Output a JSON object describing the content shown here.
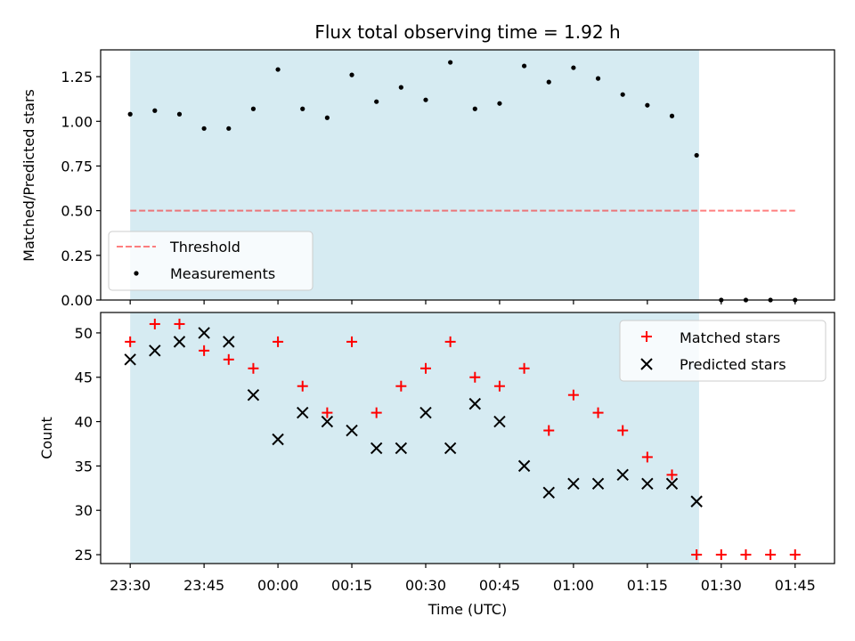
{
  "chart_data": [
    {
      "type": "scatter",
      "title": "Flux total observing time = 1.92 h",
      "ylabel": "Matched/Predicted stars",
      "ylim": [
        0,
        1.4
      ],
      "yticks": [
        0.0,
        0.25,
        0.5,
        0.75,
        1.0,
        1.25
      ],
      "ytick_labels": [
        "0.00",
        "0.25",
        "0.50",
        "0.75",
        "1.00",
        "1.25"
      ],
      "shaded_span": {
        "start": 0.0,
        "end": 115.5,
        "color": "#add8e6"
      },
      "threshold": {
        "name": "Threshold",
        "value": 0.5,
        "x_start": 0.0,
        "x_end": 135.0,
        "color": "#ff0000"
      },
      "measurements": {
        "name": "Measurements",
        "color": "#000000",
        "x": [
          0,
          5,
          10,
          15,
          20,
          25,
          30,
          35,
          40,
          45,
          50,
          55,
          60,
          65,
          70,
          75,
          80,
          85,
          90,
          95,
          100,
          105,
          110,
          115,
          120,
          125,
          130,
          135
        ],
        "y": [
          1.04,
          1.06,
          1.04,
          0.96,
          0.96,
          1.07,
          1.29,
          1.07,
          1.02,
          1.26,
          1.11,
          1.19,
          1.12,
          1.33,
          1.07,
          1.1,
          1.31,
          1.22,
          1.3,
          1.24,
          1.15,
          1.09,
          1.03,
          0.81,
          0.0,
          0.0,
          0.0,
          0.0
        ]
      },
      "legend_position": "lower-left",
      "grid": false
    },
    {
      "type": "scatter",
      "xlabel": "Time (UTC)",
      "ylabel": "Count",
      "ylim": [
        24,
        52.3
      ],
      "yticks": [
        25,
        30,
        35,
        40,
        45,
        50
      ],
      "ytick_labels": [
        "25",
        "30",
        "35",
        "40",
        "45",
        "50"
      ],
      "xlim": [
        -6,
        143
      ],
      "xticks": [
        0,
        15,
        30,
        45,
        60,
        75,
        90,
        105,
        120,
        135
      ],
      "xtick_labels": [
        "23:30",
        "23:45",
        "00:00",
        "00:15",
        "00:30",
        "00:45",
        "01:00",
        "01:15",
        "01:30",
        "01:45"
      ],
      "shaded_span": {
        "start": 0.0,
        "end": 115.5,
        "color": "#add8e6"
      },
      "series": [
        {
          "name": "Matched stars",
          "marker": "+",
          "color": "#ff0000",
          "x": [
            0,
            5,
            10,
            15,
            20,
            25,
            30,
            35,
            40,
            45,
            50,
            55,
            60,
            65,
            70,
            75,
            80,
            85,
            90,
            95,
            100,
            105,
            110,
            115,
            120,
            125,
            130,
            135
          ],
          "y": [
            49,
            51,
            51,
            48,
            47,
            46,
            49,
            44,
            41,
            49,
            41,
            44,
            46,
            49,
            45,
            44,
            46,
            39,
            43,
            41,
            39,
            36,
            34,
            25,
            25,
            25,
            25,
            25
          ]
        },
        {
          "name": "Predicted stars",
          "marker": "x",
          "color": "#000000",
          "x": [
            0,
            5,
            10,
            15,
            20,
            25,
            30,
            35,
            40,
            45,
            50,
            55,
            60,
            65,
            70,
            75,
            80,
            85,
            90,
            95,
            100,
            105,
            110,
            115
          ],
          "y": [
            47,
            48,
            49,
            50,
            49,
            43,
            38,
            41,
            40,
            39,
            37,
            37,
            41,
            37,
            42,
            40,
            35,
            32,
            33,
            33,
            34,
            33,
            33,
            31
          ]
        }
      ],
      "legend_position": "top-right",
      "grid": false
    }
  ]
}
